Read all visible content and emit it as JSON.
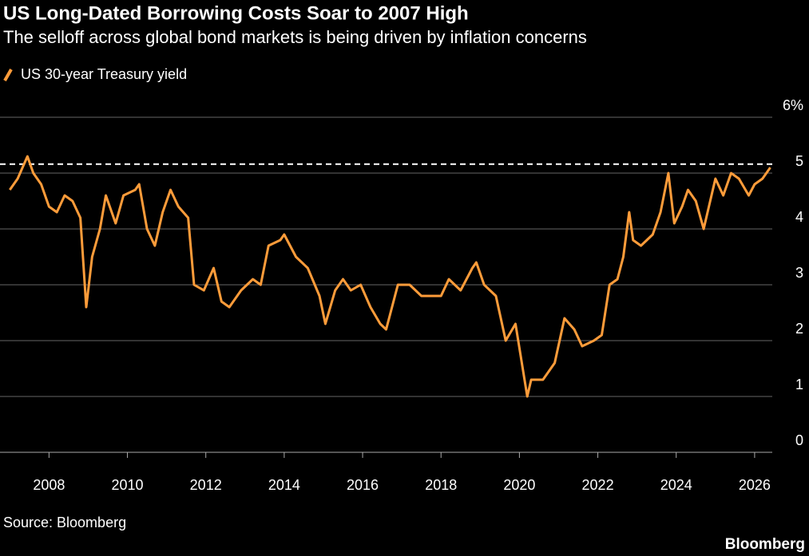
{
  "chart_data": {
    "type": "line",
    "title": "US Long-Dated Borrowing Costs Soar to 2007 High",
    "subtitle": "The selloff across global bond markets is being driven by inflation concerns",
    "source": "Source: Bloomberg",
    "brand": "Bloomberg",
    "grid": true,
    "reference_line": 5.16,
    "xlim": [
      2006.75,
      2026.45
    ],
    "xticks": [
      2008,
      2010,
      2012,
      2014,
      2016,
      2018,
      2020,
      2022,
      2024,
      2026
    ],
    "ylim": [
      0,
      6
    ],
    "yticks": [
      0,
      1,
      2,
      3,
      4,
      5,
      {
        "value": 6,
        "label": "6%"
      }
    ],
    "series": [
      {
        "name": "US 30-year Treasury yield",
        "color": "#ff9c3a",
        "x": [
          2007.0,
          2007.2,
          2007.45,
          2007.6,
          2007.8,
          2008.0,
          2008.2,
          2008.4,
          2008.6,
          2008.8,
          2008.95,
          2009.1,
          2009.3,
          2009.45,
          2009.7,
          2009.9,
          2010.2,
          2010.3,
          2010.5,
          2010.7,
          2010.9,
          2011.1,
          2011.3,
          2011.55,
          2011.7,
          2011.95,
          2012.2,
          2012.4,
          2012.6,
          2012.9,
          2013.2,
          2013.4,
          2013.6,
          2013.9,
          2014.0,
          2014.3,
          2014.6,
          2014.9,
          2015.05,
          2015.3,
          2015.5,
          2015.7,
          2015.95,
          2016.2,
          2016.45,
          2016.6,
          2016.9,
          2017.2,
          2017.5,
          2017.8,
          2018.0,
          2018.2,
          2018.5,
          2018.8,
          2018.9,
          2019.1,
          2019.4,
          2019.65,
          2019.9,
          2020.2,
          2020.3,
          2020.6,
          2020.9,
          2021.15,
          2021.4,
          2021.6,
          2021.9,
          2022.1,
          2022.3,
          2022.5,
          2022.65,
          2022.8,
          2022.9,
          2023.1,
          2023.4,
          2023.6,
          2023.8,
          2023.95,
          2024.15,
          2024.3,
          2024.5,
          2024.7,
          2024.9,
          2025.0,
          2025.2,
          2025.4,
          2025.6,
          2025.85,
          2026.0,
          2026.2,
          2026.4
        ],
        "values": [
          4.7,
          4.9,
          5.3,
          5.0,
          4.8,
          4.4,
          4.3,
          4.6,
          4.5,
          4.2,
          2.6,
          3.5,
          4.0,
          4.6,
          4.1,
          4.6,
          4.7,
          4.8,
          4.0,
          3.7,
          4.3,
          4.7,
          4.4,
          4.2,
          3.0,
          2.9,
          3.3,
          2.7,
          2.6,
          2.9,
          3.1,
          3.0,
          3.7,
          3.8,
          3.9,
          3.5,
          3.3,
          2.8,
          2.3,
          2.9,
          3.1,
          2.9,
          3.0,
          2.6,
          2.3,
          2.2,
          3.0,
          3.0,
          2.8,
          2.8,
          2.8,
          3.1,
          2.9,
          3.3,
          3.4,
          3.0,
          2.8,
          2.0,
          2.3,
          1.0,
          1.3,
          1.3,
          1.6,
          2.4,
          2.2,
          1.9,
          2.0,
          2.1,
          3.0,
          3.1,
          3.5,
          4.3,
          3.8,
          3.7,
          3.9,
          4.3,
          5.0,
          4.1,
          4.4,
          4.7,
          4.5,
          4.0,
          4.6,
          4.9,
          4.6,
          5.0,
          4.9,
          4.6,
          4.8,
          4.9,
          5.1
        ]
      }
    ]
  }
}
